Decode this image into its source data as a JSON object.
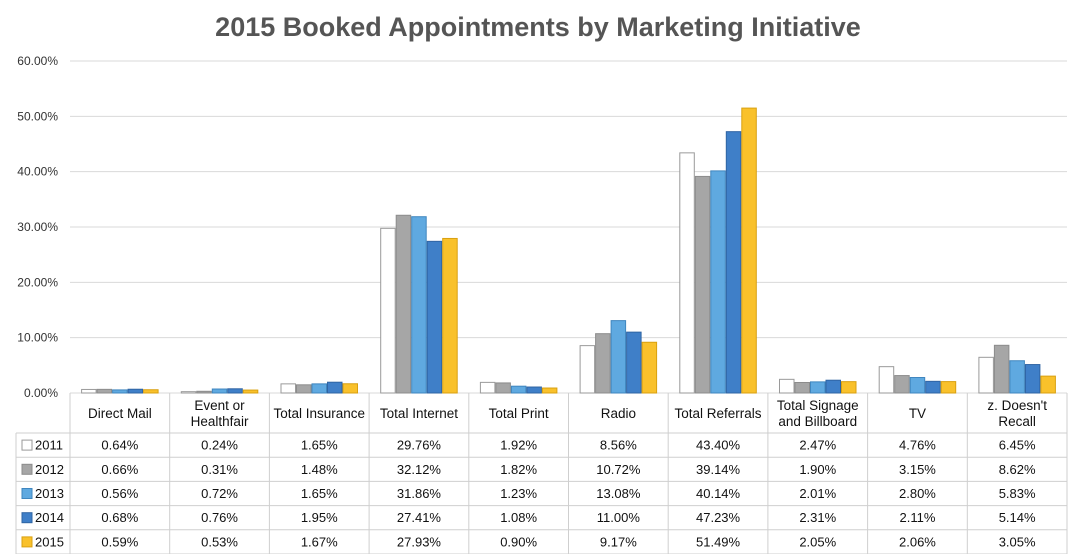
{
  "chart_data": {
    "type": "bar",
    "title": "2015 Booked Appointments by Marketing Initiative",
    "ylim": [
      0,
      60
    ],
    "yticks": [
      "0.00%",
      "10.00%",
      "20.00%",
      "30.00%",
      "40.00%",
      "50.00%",
      "60.00%"
    ],
    "grid": true,
    "legend": "data-table",
    "categories": [
      [
        "Direct Mail"
      ],
      [
        "Event or",
        "Healthfair"
      ],
      [
        "Total Insurance"
      ],
      [
        "Total Internet"
      ],
      [
        "Total Print"
      ],
      [
        "Radio"
      ],
      [
        "Total Referrals"
      ],
      [
        "Total Signage",
        "and Billboard"
      ],
      [
        "TV"
      ],
      [
        "z. Doesn't",
        "Recall"
      ]
    ],
    "series": [
      {
        "name": "2011",
        "color": "#ffffff",
        "stroke": "#9a9a9a",
        "values": [
          0.64,
          0.24,
          1.65,
          29.76,
          1.92,
          8.56,
          43.4,
          2.47,
          4.76,
          6.45
        ],
        "labels": [
          "0.64%",
          "0.24%",
          "1.65%",
          "29.76%",
          "1.92%",
          "8.56%",
          "43.40%",
          "2.47%",
          "4.76%",
          "6.45%"
        ]
      },
      {
        "name": "2012",
        "color": "#a6a6a6",
        "stroke": "#8c8c8c",
        "values": [
          0.66,
          0.31,
          1.48,
          32.12,
          1.82,
          10.72,
          39.14,
          1.9,
          3.15,
          8.62
        ],
        "labels": [
          "0.66%",
          "0.31%",
          "1.48%",
          "32.12%",
          "1.82%",
          "10.72%",
          "39.14%",
          "1.90%",
          "3.15%",
          "8.62%"
        ]
      },
      {
        "name": "2013",
        "color": "#5fa9e0",
        "stroke": "#3f86bf",
        "values": [
          0.56,
          0.72,
          1.65,
          31.86,
          1.23,
          13.08,
          40.14,
          2.01,
          2.8,
          5.83
        ],
        "labels": [
          "0.56%",
          "0.72%",
          "1.65%",
          "31.86%",
          "1.23%",
          "13.08%",
          "40.14%",
          "2.01%",
          "2.80%",
          "5.83%"
        ]
      },
      {
        "name": "2014",
        "color": "#3f7fc8",
        "stroke": "#2f64a3",
        "values": [
          0.68,
          0.76,
          1.95,
          27.41,
          1.08,
          11.0,
          47.23,
          2.31,
          2.11,
          5.14
        ],
        "labels": [
          "0.68%",
          "0.76%",
          "1.95%",
          "27.41%",
          "1.08%",
          "11.00%",
          "47.23%",
          "2.31%",
          "2.11%",
          "5.14%"
        ]
      },
      {
        "name": "2015",
        "color": "#f9c12b",
        "stroke": "#d9a010",
        "values": [
          0.59,
          0.53,
          1.67,
          27.93,
          0.9,
          9.17,
          51.49,
          2.05,
          2.06,
          3.05
        ],
        "labels": [
          "0.59%",
          "0.53%",
          "1.67%",
          "27.93%",
          "0.90%",
          "9.17%",
          "51.49%",
          "2.05%",
          "2.06%",
          "3.05%"
        ]
      }
    ]
  }
}
